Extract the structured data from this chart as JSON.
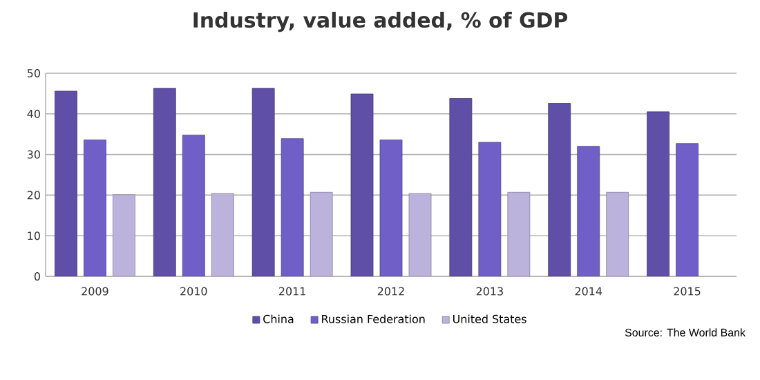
{
  "chart_data": {
    "type": "bar",
    "title": "Industry, value added, % of GDP",
    "categories": [
      "2009",
      "2010",
      "2011",
      "2012",
      "2013",
      "2014",
      "2015"
    ],
    "series": [
      {
        "name": "China",
        "color": "#5f4fa6",
        "values": [
          45.6,
          46.3,
          46.3,
          44.9,
          43.8,
          42.6,
          40.5
        ]
      },
      {
        "name": "Russian Federation",
        "color": "#6f5fc6",
        "values": [
          33.6,
          34.8,
          33.9,
          33.6,
          33.0,
          32.0,
          32.7
        ]
      },
      {
        "name": "United States",
        "color": "#bcb3dc",
        "values": [
          20.1,
          20.4,
          20.7,
          20.4,
          20.7,
          20.7,
          null
        ]
      }
    ],
    "ylim": [
      0,
      50
    ],
    "yticks": [
      0,
      10,
      20,
      30,
      40,
      50
    ],
    "grid": "y",
    "legend": "bottom",
    "annotations": [
      "Source: The World Bank"
    ]
  }
}
